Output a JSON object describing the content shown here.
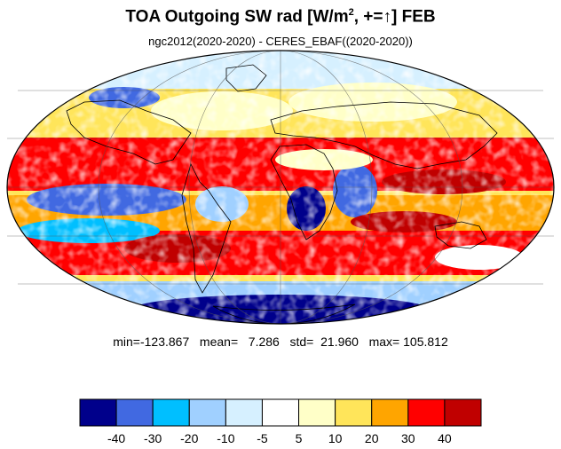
{
  "title": {
    "prefix": "TOA Outgoing SW rad [W/m",
    "sup": "2",
    "suffix": ", +=↑] FEB"
  },
  "subtitle": "ngc2012(2020-2020) - CERES_EBAF((2020-2020))",
  "stats": {
    "text": "min=-123.867   mean=   7.286   std=  21.960   max= 105.812",
    "min": -123.867,
    "mean": 7.286,
    "std": 21.96,
    "max": 105.812
  },
  "map": {
    "projection": "mollweide",
    "ocean_shading": "difference field",
    "graticule": true,
    "coastlines": true
  },
  "colorbar": {
    "colors": [
      "#00008b",
      "#4169e1",
      "#00bfff",
      "#a0d0ff",
      "#d6f0ff",
      "#ffffff",
      "#ffffc8",
      "#ffe55a",
      "#ffa500",
      "#ff0000",
      "#c00000"
    ],
    "labels": [
      "-40",
      "-30",
      "-20",
      "-10",
      "-5",
      "5",
      "10",
      "20",
      "30",
      "40"
    ]
  }
}
